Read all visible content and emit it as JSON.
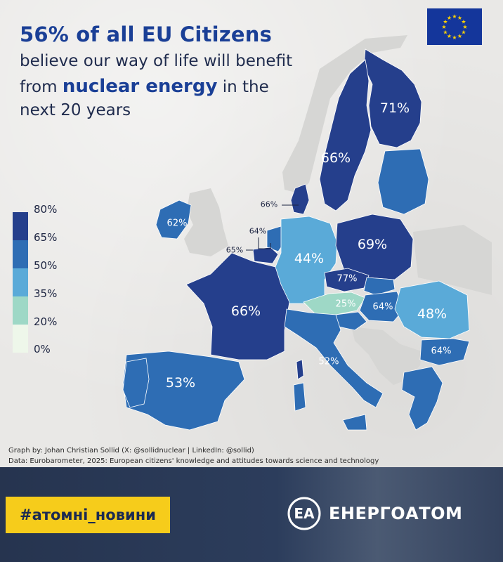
{
  "title": {
    "line1": "56% of all EU Citizens",
    "line2": "believe our way of life will benefit",
    "line3_pre": "from ",
    "line3_em": "nuclear energy",
    "line3_post": " in the",
    "line4": "next 20 years"
  },
  "colors": {
    "bin_65_80": "#253f8c",
    "bin_50_65": "#2e6db4",
    "bin_35_50": "#5aaad8",
    "bin_20_35": "#9ed8c6",
    "bin_0_20": "#eef7ea",
    "outside": "#d6d6d4",
    "eu_blue": "#14369b",
    "eu_star": "#ffd200",
    "hashtag_bg": "#f6cc1b"
  },
  "legend": {
    "ticks": [
      "80%",
      "65%",
      "50%",
      "35%",
      "20%",
      "0%"
    ]
  },
  "regions": [
    {
      "name": "Finland",
      "label": "71%",
      "value": 71
    },
    {
      "name": "Sweden",
      "label": "66%",
      "value": 66
    },
    {
      "name": "Denmark",
      "label": "66%",
      "value": 66
    },
    {
      "name": "Ireland",
      "label": "62%",
      "value": 62
    },
    {
      "name": "Netherlands",
      "label": "64%",
      "value": 64
    },
    {
      "name": "Belgium",
      "label": "65%",
      "value": 65
    },
    {
      "name": "Germany",
      "label": "44%",
      "value": 44
    },
    {
      "name": "Poland",
      "label": "69%",
      "value": 69
    },
    {
      "name": "Czechia",
      "label": "77%",
      "value": 77
    },
    {
      "name": "Austria",
      "label": "25%",
      "value": 25
    },
    {
      "name": "Hungary",
      "label": "64%",
      "value": 64
    },
    {
      "name": "Romania",
      "label": "48%",
      "value": 48
    },
    {
      "name": "Bulgaria",
      "label": "64%",
      "value": 64
    },
    {
      "name": "France",
      "label": "66%",
      "value": 66
    },
    {
      "name": "Italy",
      "label": "52%",
      "value": 52
    },
    {
      "name": "Spain",
      "label": "53%",
      "value": 53
    }
  ],
  "credits": {
    "graph": "Graph by: Johan Christian Sollid (X: @sollidnuclear | LinkedIn: @sollid)",
    "data": "Data: Eurobarometer, 2025: European citizens' knowledge and attitudes towards science and technology"
  },
  "footer": {
    "hashtag": "#атомні_новини",
    "brand": "ЕНЕРГОАТОМ",
    "logo_letters": "EA"
  }
}
